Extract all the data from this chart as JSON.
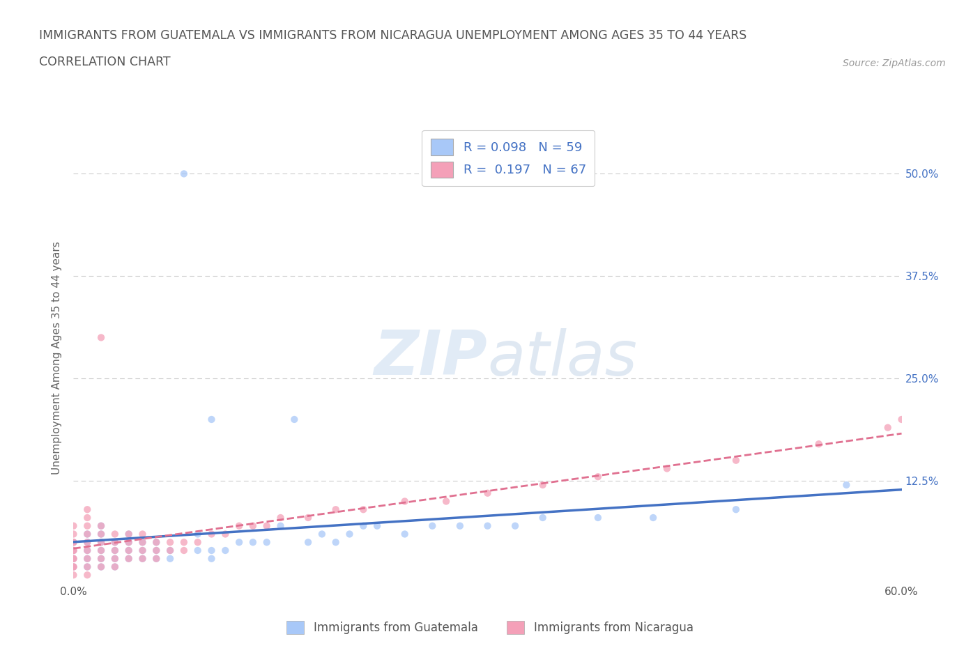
{
  "title_line1": "IMMIGRANTS FROM GUATEMALA VS IMMIGRANTS FROM NICARAGUA UNEMPLOYMENT AMONG AGES 35 TO 44 YEARS",
  "title_line2": "CORRELATION CHART",
  "source_text": "Source: ZipAtlas.com",
  "ylabel": "Unemployment Among Ages 35 to 44 years",
  "xlim": [
    0.0,
    0.6
  ],
  "ylim": [
    0.0,
    0.55
  ],
  "r_guatemala": 0.098,
  "n_guatemala": 59,
  "r_nicaragua": 0.197,
  "n_nicaragua": 67,
  "color_guatemala": "#a8c8f8",
  "color_nicaragua": "#f4a0b8",
  "color_trendline_blue": "#4472c4",
  "color_trendline_pink": "#e07090",
  "watermark_color": "#ccddf0",
  "legend_label_guatemala": "Immigrants from Guatemala",
  "legend_label_nicaragua": "Immigrants from Nicaragua",
  "guatemala_x": [
    0.0,
    0.0,
    0.0,
    0.0,
    0.01,
    0.01,
    0.01,
    0.01,
    0.01,
    0.02,
    0.02,
    0.02,
    0.02,
    0.02,
    0.02,
    0.03,
    0.03,
    0.03,
    0.03,
    0.04,
    0.04,
    0.04,
    0.04,
    0.05,
    0.05,
    0.05,
    0.06,
    0.06,
    0.06,
    0.07,
    0.07,
    0.08,
    0.09,
    0.09,
    0.1,
    0.1,
    0.1,
    0.11,
    0.12,
    0.13,
    0.14,
    0.15,
    0.16,
    0.17,
    0.18,
    0.19,
    0.2,
    0.21,
    0.22,
    0.24,
    0.26,
    0.28,
    0.3,
    0.32,
    0.34,
    0.38,
    0.42,
    0.48,
    0.56
  ],
  "guatemala_y": [
    0.02,
    0.03,
    0.04,
    0.05,
    0.02,
    0.03,
    0.04,
    0.05,
    0.06,
    0.02,
    0.03,
    0.04,
    0.05,
    0.06,
    0.07,
    0.02,
    0.03,
    0.04,
    0.05,
    0.03,
    0.04,
    0.05,
    0.06,
    0.03,
    0.04,
    0.05,
    0.03,
    0.04,
    0.05,
    0.03,
    0.04,
    0.5,
    0.04,
    0.06,
    0.03,
    0.04,
    0.2,
    0.04,
    0.05,
    0.05,
    0.05,
    0.07,
    0.2,
    0.05,
    0.06,
    0.05,
    0.06,
    0.07,
    0.07,
    0.06,
    0.07,
    0.07,
    0.07,
    0.07,
    0.08,
    0.08,
    0.08,
    0.09,
    0.12
  ],
  "nicaragua_x": [
    0.0,
    0.0,
    0.0,
    0.0,
    0.0,
    0.0,
    0.0,
    0.0,
    0.0,
    0.0,
    0.0,
    0.01,
    0.01,
    0.01,
    0.01,
    0.01,
    0.01,
    0.01,
    0.01,
    0.01,
    0.02,
    0.02,
    0.02,
    0.02,
    0.02,
    0.02,
    0.02,
    0.03,
    0.03,
    0.03,
    0.03,
    0.03,
    0.04,
    0.04,
    0.04,
    0.04,
    0.05,
    0.05,
    0.05,
    0.05,
    0.06,
    0.06,
    0.06,
    0.07,
    0.07,
    0.08,
    0.08,
    0.09,
    0.1,
    0.11,
    0.12,
    0.13,
    0.14,
    0.15,
    0.17,
    0.19,
    0.21,
    0.24,
    0.27,
    0.3,
    0.34,
    0.38,
    0.43,
    0.48,
    0.54,
    0.59,
    0.6
  ],
  "nicaragua_y": [
    0.01,
    0.02,
    0.02,
    0.03,
    0.03,
    0.04,
    0.04,
    0.05,
    0.05,
    0.06,
    0.07,
    0.01,
    0.02,
    0.03,
    0.04,
    0.05,
    0.06,
    0.07,
    0.08,
    0.09,
    0.02,
    0.03,
    0.04,
    0.05,
    0.06,
    0.07,
    0.3,
    0.02,
    0.03,
    0.04,
    0.05,
    0.06,
    0.03,
    0.04,
    0.05,
    0.06,
    0.03,
    0.04,
    0.05,
    0.06,
    0.03,
    0.04,
    0.05,
    0.04,
    0.05,
    0.04,
    0.05,
    0.05,
    0.06,
    0.06,
    0.07,
    0.07,
    0.07,
    0.08,
    0.08,
    0.09,
    0.09,
    0.1,
    0.1,
    0.11,
    0.12,
    0.13,
    0.14,
    0.15,
    0.17,
    0.19,
    0.2
  ],
  "background_color": "#ffffff",
  "grid_color": "#cccccc",
  "title_color": "#555555"
}
